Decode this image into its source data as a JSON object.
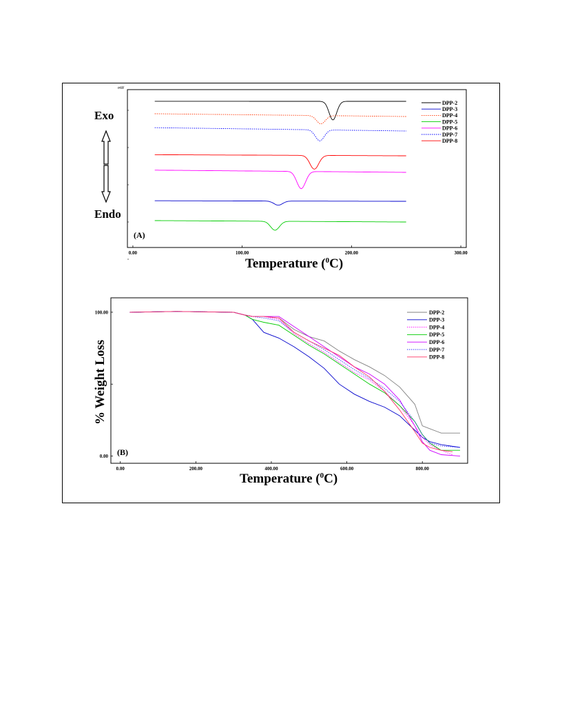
{
  "figure": {
    "dsc": {
      "panel_label": "(A)",
      "unit_label": "mW",
      "exo_label": "Exo",
      "endo_label": "Endo",
      "xlabel": "Temperature (",
      "xlabel_sup": "0",
      "xlabel_end": "C)"
    },
    "tga": {
      "panel_label": "(B)",
      "ylabel": "% Weight Loss",
      "xlabel": "Temperature (",
      "xlabel_sup": "0",
      "xlabel_end": "C)"
    }
  },
  "chart_data": [
    {
      "type": "line",
      "panel": "A",
      "xlabel": "Temperature (0C)",
      "ylabel": "",
      "xlim": [
        -5,
        305
      ],
      "x_ticks": [
        "0.00",
        "100.00",
        "200.00",
        "300.00"
      ],
      "legend_position": "top-right",
      "grid": false,
      "series": [
        {
          "name": "DPP-2",
          "color": "#000000",
          "dash": "solid",
          "baseline": 0,
          "slope": 0.2,
          "peak_x": 183,
          "peak_depth": 27,
          "peak_width": 3.5
        },
        {
          "name": "DPP-3",
          "color": "#0000cc",
          "dash": "solid",
          "baseline": 145,
          "slope": 2,
          "peak_x": 133,
          "peak_depth": 6,
          "peak_width": 4
        },
        {
          "name": "DPP-4",
          "color": "#ff3300",
          "dash": "dotted",
          "baseline": 22,
          "slope": 10,
          "peak_x": 172,
          "peak_depth": 12,
          "peak_width": 4
        },
        {
          "name": "DPP-5",
          "color": "#00cc00",
          "dash": "solid",
          "baseline": 175,
          "slope": 5,
          "peak_x": 130,
          "peak_depth": 13,
          "peak_width": 4
        },
        {
          "name": "DPP-6",
          "color": "#ff00ff",
          "dash": "solid",
          "baseline": 103,
          "slope": 8,
          "peak_x": 154,
          "peak_depth": 25,
          "peak_width": 4
        },
        {
          "name": "DPP-7",
          "color": "#0000ff",
          "dash": "dotted",
          "baseline": 43,
          "slope": 12,
          "peak_x": 171,
          "peak_depth": 16,
          "peak_width": 4
        },
        {
          "name": "DPP-8",
          "color": "#ff0000",
          "dash": "solid",
          "baseline": 79,
          "slope": 4,
          "peak_x": 166,
          "peak_depth": 20,
          "peak_width": 4
        }
      ]
    },
    {
      "type": "line",
      "panel": "B",
      "xlabel": "Temperature (0C)",
      "ylabel": "% Weight Loss",
      "xlim": [
        -25,
        920
      ],
      "ylim": [
        -5,
        110
      ],
      "x_ticks": [
        "0.00",
        "200.00",
        "400.00",
        "600.00",
        "800.00"
      ],
      "y_ticks": [
        "0.00",
        "100.00"
      ],
      "legend_position": "top-right",
      "grid": false,
      "series": [
        {
          "name": "DPP-2",
          "color": "#808080",
          "dash": "solid",
          "x": [
            25,
            150,
            300,
            330,
            350,
            380,
            420,
            460,
            500,
            540,
            580,
            620,
            660,
            700,
            740,
            780,
            800,
            820,
            850,
            900
          ],
          "y": [
            100,
            100.5,
            100,
            98,
            97,
            97,
            96,
            88,
            83,
            80,
            73,
            67,
            62,
            56,
            48,
            36,
            21,
            19,
            16,
            16
          ]
        },
        {
          "name": "DPP-3",
          "color": "#0000cc",
          "dash": "solid",
          "x": [
            25,
            150,
            300,
            330,
            350,
            360,
            380,
            420,
            460,
            500,
            540,
            580,
            620,
            660,
            700,
            740,
            780,
            800,
            820,
            850,
            900
          ],
          "y": [
            100,
            100.5,
            100,
            98,
            95,
            92,
            86,
            82,
            76,
            69,
            61,
            50,
            43,
            38,
            34,
            28,
            18,
            13,
            10,
            8,
            6
          ]
        },
        {
          "name": "DPP-4",
          "color": "#ff00ff",
          "dash": "dotted",
          "x": [
            25,
            150,
            300,
            330,
            350,
            380,
            420,
            460,
            500,
            540,
            580,
            620,
            660,
            700,
            740,
            780,
            800,
            820,
            850,
            880
          ],
          "y": [
            100,
            100.5,
            100,
            98,
            97,
            97,
            95,
            85,
            78,
            72,
            65,
            58,
            53,
            45,
            35,
            21,
            13,
            8,
            4,
            1
          ]
        },
        {
          "name": "DPP-5",
          "color": "#00cc00",
          "dash": "solid",
          "x": [
            25,
            150,
            300,
            330,
            350,
            380,
            420,
            460,
            500,
            540,
            580,
            620,
            660,
            700,
            740,
            780,
            800,
            820,
            850,
            900
          ],
          "y": [
            100,
            100.5,
            100,
            98,
            95,
            93,
            91,
            84,
            77,
            71,
            64,
            57,
            50,
            44,
            35,
            24,
            15,
            9,
            4,
            4
          ]
        },
        {
          "name": "DPP-6",
          "color": "#cc00ff",
          "dash": "solid",
          "x": [
            25,
            150,
            300,
            330,
            350,
            380,
            420,
            460,
            500,
            540,
            580,
            620,
            660,
            700,
            740,
            780,
            800,
            820,
            850,
            900
          ],
          "y": [
            100,
            100.5,
            100,
            98,
            97,
            97,
            97,
            90,
            83,
            76,
            69,
            62,
            57,
            50,
            39,
            21,
            10,
            4,
            1,
            0
          ]
        },
        {
          "name": "DPP-7",
          "color": "#3333ff",
          "dash": "dotted",
          "x": [
            25,
            150,
            300,
            330,
            350,
            380,
            420,
            460,
            500,
            540,
            580,
            620,
            660,
            700,
            740,
            780,
            800,
            820,
            850,
            900
          ],
          "y": [
            100,
            100.5,
            100,
            98,
            97,
            96,
            94,
            86,
            80,
            74,
            67,
            60,
            54,
            47,
            38,
            24,
            15,
            9,
            7,
            6
          ]
        },
        {
          "name": "DPP-8",
          "color": "#ff3366",
          "dash": "solid",
          "x": [
            25,
            150,
            300,
            330,
            350,
            380,
            420,
            460,
            500,
            540,
            580,
            620,
            660,
            700,
            740,
            780,
            800,
            820,
            850,
            880
          ],
          "y": [
            100,
            100.5,
            100,
            98,
            97,
            97,
            96,
            86,
            80,
            75,
            70,
            62,
            55,
            45,
            32,
            17,
            9,
            6,
            4,
            3
          ]
        }
      ]
    }
  ]
}
